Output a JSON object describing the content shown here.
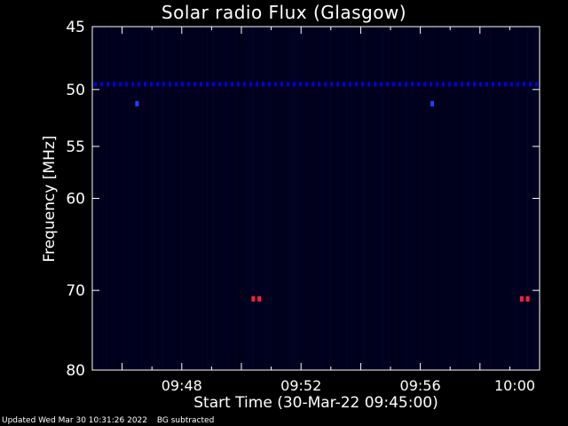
{
  "chart_data": {
    "type": "heatmap",
    "title": "Solar radio Flux (Glasgow)",
    "xlabel": "Start Time (30-Mar-22 09:45:00)",
    "ylabel": "Frequency [MHz]",
    "x_range_minutes": [
      0,
      15
    ],
    "x_ticks": [
      {
        "t": 3,
        "label": "09:48"
      },
      {
        "t": 7,
        "label": "09:52"
      },
      {
        "t": 11,
        "label": "09:56"
      },
      {
        "t": 15,
        "label": "10:00"
      }
    ],
    "y_scale": "log",
    "ylim": [
      45,
      80
    ],
    "y_ticks": [
      45,
      50,
      55,
      60,
      70,
      80
    ],
    "background_color": "#000020",
    "features": [
      {
        "kind": "band",
        "frequency": 49.6,
        "color": "#0000e0",
        "description": "dotted interference band"
      },
      {
        "kind": "spot",
        "t": 1.5,
        "frequency": 51.2,
        "color": "#2040ff"
      },
      {
        "kind": "spot",
        "t": 11.4,
        "frequency": 51.2,
        "color": "#2040ff"
      },
      {
        "kind": "spot",
        "t": 5.4,
        "frequency": 71.0,
        "color": "#ff2040"
      },
      {
        "kind": "spot",
        "t": 5.6,
        "frequency": 71.0,
        "color": "#ff2040"
      },
      {
        "kind": "spot",
        "t": 14.4,
        "frequency": 71.0,
        "color": "#ff2040"
      },
      {
        "kind": "spot",
        "t": 14.6,
        "frequency": 71.0,
        "color": "#ff2040"
      }
    ]
  },
  "footer": {
    "updated": "Updated Wed Mar 30 10:31:26 2022",
    "note": "BG subtracted"
  }
}
